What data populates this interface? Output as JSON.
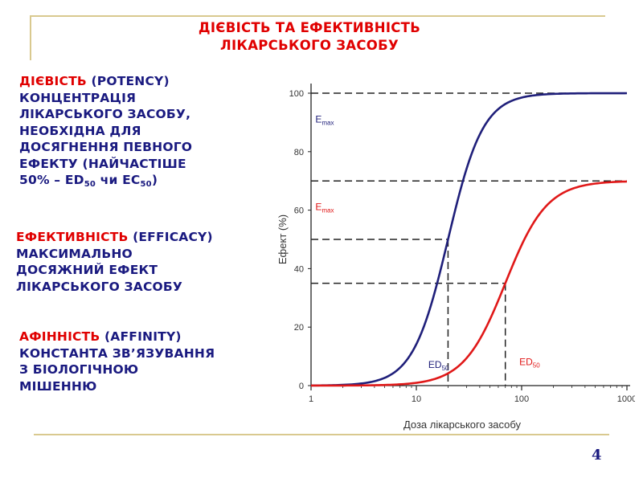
{
  "slide": {
    "title_line1": "ДІЄВІСТЬ ТА ЕФЕКТИВНІСТЬ",
    "title_line2": "ЛІКАРСЬКОГО ЗАСОБУ",
    "potency": {
      "key": "ДІЄВІСТЬ",
      "key_suffix": " (POTENCY)",
      "lines": [
        "КОНЦЕНТРАЦІЯ",
        "ЛІКАРСЬКОГО ЗАСОБУ,",
        "НЕОБХІДНА ДЛЯ",
        "ДОСЯГНЕННЯ ПЕВНОГО",
        "ЕФЕКТУ  (НАЙЧАСТІШЕ"
      ],
      "last_a": "50% – ED",
      "last_sub1": "50",
      "last_b": " чи EC",
      "last_sub2": "50",
      "last_c": ")"
    },
    "efficacy": {
      "key": "ЕФЕКТИВНІСТЬ",
      "key_suffix": " (EFFICACY)",
      "lines": [
        " МАКСИМАЛЬНО",
        "ДОСЯЖНИЙ ЕФЕКТ",
        "ЛІКАРСЬКОГО ЗАСОБУ"
      ]
    },
    "affinity": {
      "key": "АФІННІСТЬ",
      "key_suffix": " (AFFINITY)",
      "lines": [
        "КОНСТАНТА ЗВ’ЯЗУВАННЯ",
        "З БІОЛОГІЧНОЮ",
        "МІШЕННЮ"
      ]
    },
    "page_number": "4"
  },
  "chart_data": {
    "type": "line",
    "x_scale": "log",
    "xlim": [
      1,
      1000
    ],
    "ylim": [
      0,
      100
    ],
    "xlabel": "Доза лікарського засобу",
    "ylabel": "Ефект (%)",
    "x_ticks": [
      1,
      10,
      100,
      1000
    ],
    "x_tick_labels": [
      "1",
      "10",
      "100",
      "1000"
    ],
    "y_ticks": [
      0,
      20,
      40,
      60,
      80,
      100
    ],
    "y_tick_labels": [
      "0",
      "20",
      "40",
      "60",
      "80",
      "100"
    ],
    "series": [
      {
        "color": "#1f1f7a",
        "emax": 100,
        "ed50": 20,
        "hill": 2.6
      },
      {
        "color": "#e01818",
        "emax": 70,
        "ed50": 70,
        "hill": 2.2
      }
    ],
    "reference_lines": [
      {
        "y": 100
      },
      {
        "y": 70
      },
      {
        "y": 50,
        "x": 20
      },
      {
        "y": 35,
        "x": 70
      }
    ],
    "annotations": [
      {
        "main": "E",
        "sub": "max",
        "color": "#1f1f7a",
        "x": 1.1,
        "y": 90
      },
      {
        "main": "E",
        "sub": "max",
        "color": "#e01818",
        "x": 1.1,
        "y": 60
      },
      {
        "main": "ED",
        "sub": "50",
        "color": "#1f1f7a",
        "x": 13,
        "y": 6
      },
      {
        "main": "ED",
        "sub": "50",
        "color": "#e01818",
        "x": 95,
        "y": 7
      }
    ]
  }
}
